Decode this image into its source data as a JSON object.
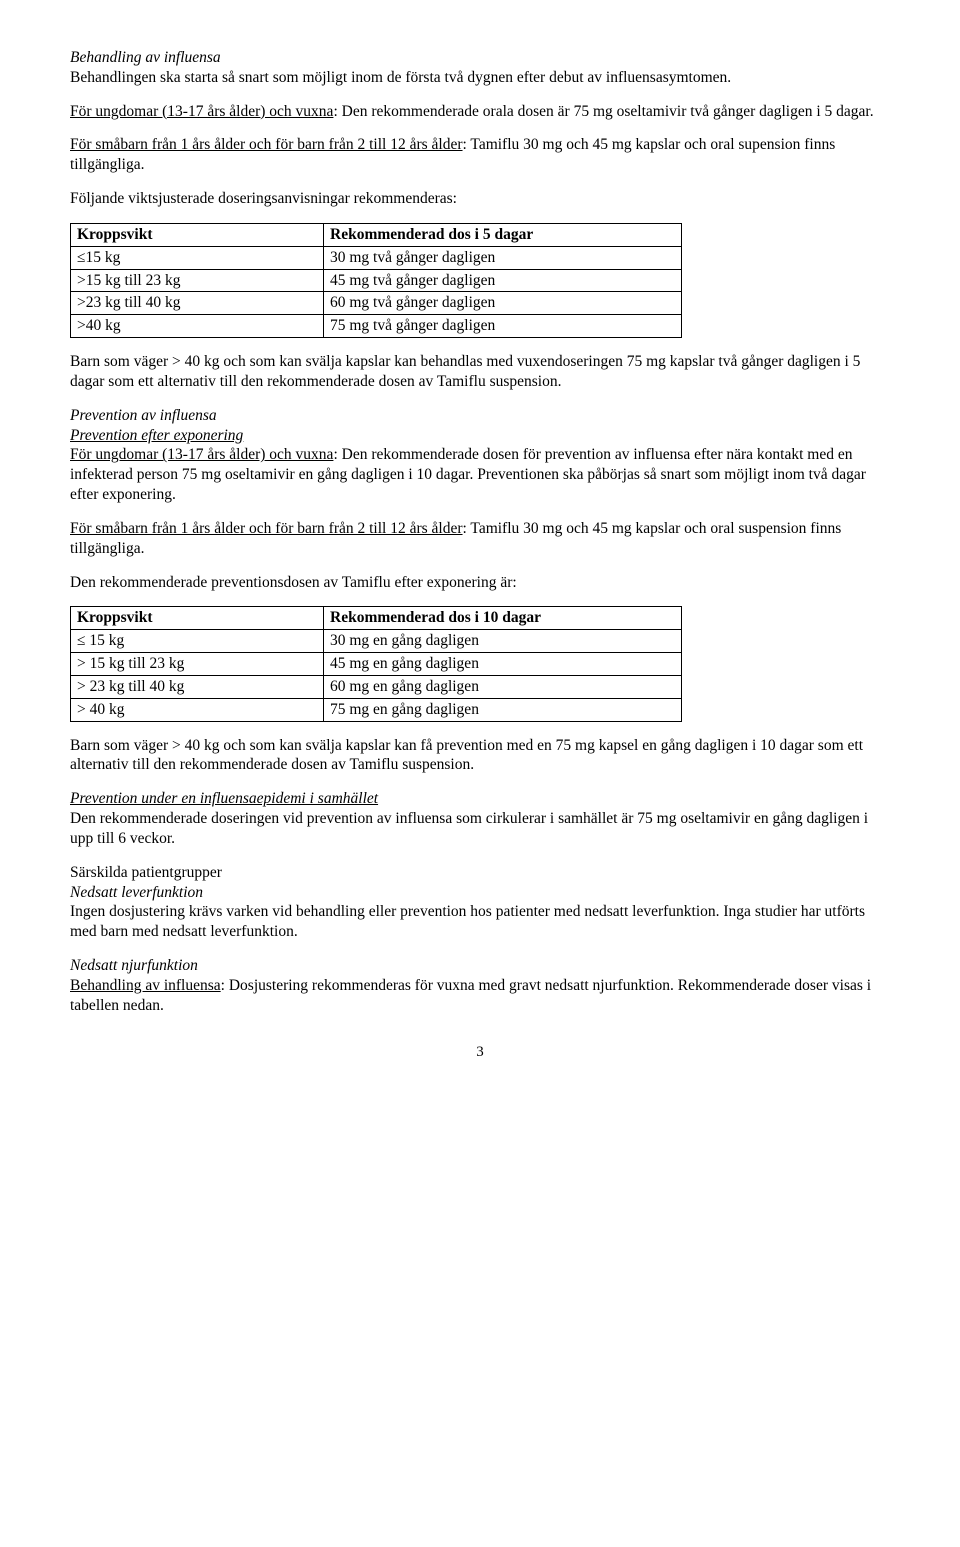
{
  "section1": {
    "heading": "Behandling av influensa",
    "intro": "Behandlingen ska starta så snart som möjligt inom de första två dygnen efter debut av influensasymtomen.",
    "adults_pre": "För ungdomar (13-17 års ålder) och vuxna",
    "adults_post": ": Den rekommenderade orala dosen är 75 mg oseltamivir två gånger dagligen i 5 dagar.",
    "infants_pre": "För småbarn från 1 års ålder och för barn från 2 till 12 års ålder",
    "infants_post": ": Tamiflu 30 mg och 45 mg kapslar och oral supension finns tillgängliga.",
    "table_intro": "Följande viktsjusterade doseringsanvisningar rekommenderas:"
  },
  "table1": {
    "h1": "Kroppsvikt",
    "h2": "Rekommenderad dos i 5 dagar",
    "rows": [
      {
        "c1": "≤15 kg",
        "c2": "30 mg två gånger dagligen"
      },
      {
        "c1": ">15 kg till 23 kg",
        "c2": "45 mg två gånger dagligen"
      },
      {
        "c1": ">23 kg till 40 kg",
        "c2": "60 mg två gånger dagligen"
      },
      {
        "c1": ">40 kg",
        "c2": "75 mg två gånger dagligen"
      }
    ]
  },
  "after_table1": "Barn som väger > 40 kg och som kan svälja kapslar kan behandlas med vuxendoseringen 75 mg kapslar två gånger dagligen i 5 dagar som ett alternativ till den rekommenderade dosen av Tamiflu suspension.",
  "section2": {
    "heading_l1": "Prevention av influensa",
    "heading_l2": "Prevention efter exponering",
    "adults_pre": "För ungdomar (13-17 års ålder) och vuxna",
    "adults_post": ": Den rekommenderade dosen för prevention av influensa efter nära kontakt med en infekterad person 75 mg oseltamivir en gång dagligen i 10 dagar. Preventionen ska påbörjas så snart som möjligt inom två dagar efter exponering.",
    "infants_pre": "För småbarn från 1 års ålder och för barn från 2 till 12 års ålder",
    "infants_post": ": Tamiflu 30 mg och 45 mg kapslar och oral suspension finns tillgängliga.",
    "table_intro": "Den rekommenderade preventionsdosen av Tamiflu efter exponering är:"
  },
  "table2": {
    "h1": "Kroppsvikt",
    "h2": "Rekommenderad dos i 10 dagar",
    "rows": [
      {
        "c1": "≤ 15 kg",
        "c2": "30 mg en gång dagligen"
      },
      {
        "c1": "> 15 kg till 23 kg",
        "c2": "45 mg en gång dagligen"
      },
      {
        "c1": "> 23 kg till 40 kg",
        "c2": "60 mg en gång dagligen"
      },
      {
        "c1": "> 40 kg",
        "c2": "75 mg en gång dagligen"
      }
    ]
  },
  "after_table2": "Barn som väger > 40 kg och som kan svälja kapslar kan få prevention med en 75 mg kapsel en gång dagligen i 10 dagar som ett alternativ till den rekommenderade dosen av Tamiflu suspension.",
  "section3": {
    "heading": "Prevention under en influensaepidemi i samhället",
    "body": "Den rekommenderade doseringen vid prevention av influensa som cirkulerar i samhället är 75 mg oseltamivir en gång dagligen i upp till 6 veckor."
  },
  "section4": {
    "heading_l1": "Särskilda patientgrupper",
    "heading_l2": "Nedsatt leverfunktion",
    "body": "Ingen dosjustering krävs varken vid behandling eller prevention hos patienter med nedsatt leverfunktion. Inga studier har utförts med barn med nedsatt leverfunktion."
  },
  "section5": {
    "heading": "Nedsatt njurfunktion",
    "subhead": "Behandling av influensa",
    "body": ": Dosjustering rekommenderas för vuxna med gravt nedsatt njurfunktion. Rekommenderade doser visas i tabellen nedan."
  },
  "page_number": "3"
}
